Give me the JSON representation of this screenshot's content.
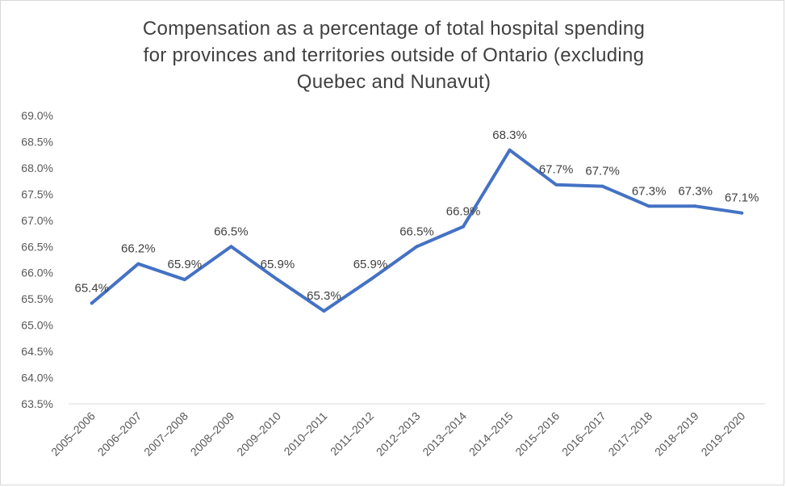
{
  "chart_data": {
    "type": "line",
    "title_lines": [
      "Compensation as a percentage of total hospital spending",
      "for provinces and territories outside of Ontario (excluding",
      "Quebec and Nunavut)"
    ],
    "categories": [
      "2005–2006",
      "2006–2007",
      "2007–2008",
      "2008–2009",
      "2009–2010",
      "2010–2011",
      "2011–2012",
      "2012–2013",
      "2013–2014",
      "2014–2015",
      "2015–2016",
      "2016–2017",
      "2017–2018",
      "2018–2019",
      "2019–2020"
    ],
    "series": [
      {
        "values": [
          65.42,
          66.17,
          65.87,
          66.5,
          65.87,
          65.27,
          65.87,
          66.5,
          66.88,
          68.34,
          67.68,
          67.65,
          67.27,
          67.27,
          67.14
        ],
        "labels": [
          "65.4%",
          "66.2%",
          "65.9%",
          "66.5%",
          "65.9%",
          "65.3%",
          "65.9%",
          "66.5%",
          "66.9%",
          "68.3%",
          "67.7%",
          "67.7%",
          "67.3%",
          "67.3%",
          "67.1%"
        ]
      }
    ],
    "yticks": [
      "63.5%",
      "64.0%",
      "64.5%",
      "65.0%",
      "65.5%",
      "66.0%",
      "66.5%",
      "67.0%",
      "67.5%",
      "68.0%",
      "68.5%",
      "69.0%"
    ],
    "ylim": [
      63.5,
      69.0
    ],
    "grid": false,
    "legend": "none",
    "colors": {
      "line": "#4472c4",
      "text": "#404040",
      "axis": "#d9d9d9"
    }
  }
}
